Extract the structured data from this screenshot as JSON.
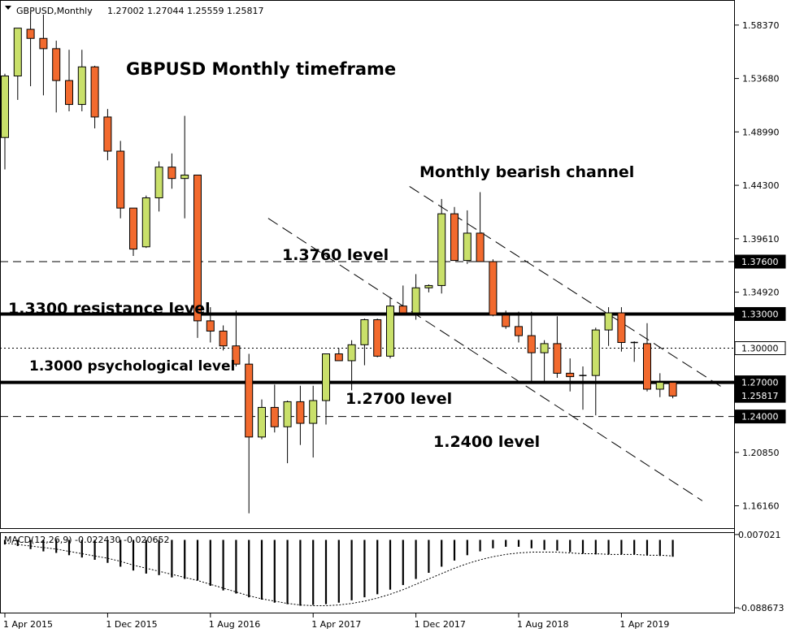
{
  "header": {
    "symbol": "GBPUSD,Monthly",
    "ohlc": "1.27002 1.27044 1.25559 1.25817"
  },
  "chart_data": [
    {
      "type": "candlestick",
      "title": "GBPUSD Monthly timeframe",
      "annotations": {
        "channel": "Monthly bearish channel",
        "level_1376": "1.3760 level",
        "level_133": "1.3300 resistance level",
        "level_13": "1.3000 psychological level",
        "level_127": "1.2700 level",
        "level_124": "1.2400 level"
      },
      "ylim": [
        1.142,
        1.605
      ],
      "y_ticks": [
        "1.58370",
        "1.53680",
        "1.48990",
        "1.44300",
        "1.39610",
        "1.34920",
        "1.20850",
        "1.16160"
      ],
      "y_tick_values": [
        1.5837,
        1.5368,
        1.4899,
        1.443,
        1.3961,
        1.3492,
        1.2085,
        1.1616
      ],
      "x_ticks": [
        {
          "label": "1 Apr 2015",
          "index": 0
        },
        {
          "label": "1 Dec 2015",
          "index": 8
        },
        {
          "label": "1 Aug 2016",
          "index": 16
        },
        {
          "label": "1 Apr 2017",
          "index": 24
        },
        {
          "label": "1 Dec 2017",
          "index": 32
        },
        {
          "label": "1 Aug 2018",
          "index": 40
        },
        {
          "label": "1 Apr 2019",
          "index": 48
        }
      ],
      "levels": [
        {
          "label": "1.37600",
          "value": 1.376,
          "style": "dashed",
          "box": "black"
        },
        {
          "label": "1.33000",
          "value": 1.33,
          "style": "thick",
          "box": "black"
        },
        {
          "label": "1.30000",
          "value": 1.3,
          "style": "dotted",
          "box": "white"
        },
        {
          "label": "1.27000",
          "value": 1.27,
          "style": "thick",
          "box": "black"
        },
        {
          "label": "1.25817",
          "value": 1.25817,
          "style": "none",
          "box": "black"
        },
        {
          "label": "1.24000",
          "value": 1.24,
          "style": "dashed",
          "box": "black"
        }
      ],
      "channel_lines": [
        {
          "from": {
            "index": 31.5,
            "value": 1.442
          },
          "to": {
            "index": 55.8,
            "value": 1.266
          }
        },
        {
          "from": {
            "index": 20.5,
            "value": 1.414
          },
          "to": {
            "index": 54.3,
            "value": 1.166
          }
        }
      ],
      "candles": [
        {
          "o": 1.485,
          "h": 1.541,
          "l": 1.457,
          "c": 1.539
        },
        {
          "o": 1.539,
          "h": 1.581,
          "l": 1.518,
          "c": 1.581
        },
        {
          "o": 1.58,
          "h": 1.595,
          "l": 1.53,
          "c": 1.572
        },
        {
          "o": 1.572,
          "h": 1.593,
          "l": 1.522,
          "c": 1.563
        },
        {
          "o": 1.563,
          "h": 1.57,
          "l": 1.507,
          "c": 1.535
        },
        {
          "o": 1.535,
          "h": 1.562,
          "l": 1.508,
          "c": 1.514
        },
        {
          "o": 1.514,
          "h": 1.562,
          "l": 1.508,
          "c": 1.547
        },
        {
          "o": 1.547,
          "h": 1.548,
          "l": 1.493,
          "c": 1.503
        },
        {
          "o": 1.503,
          "h": 1.51,
          "l": 1.465,
          "c": 1.473
        },
        {
          "o": 1.473,
          "h": 1.482,
          "l": 1.414,
          "c": 1.423
        },
        {
          "o": 1.423,
          "h": 1.423,
          "l": 1.381,
          "c": 1.387
        },
        {
          "o": 1.389,
          "h": 1.434,
          "l": 1.388,
          "c": 1.432
        },
        {
          "o": 1.432,
          "h": 1.464,
          "l": 1.42,
          "c": 1.459
        },
        {
          "o": 1.459,
          "h": 1.471,
          "l": 1.44,
          "c": 1.449
        },
        {
          "o": 1.449,
          "h": 1.504,
          "l": 1.414,
          "c": 1.452
        },
        {
          "o": 1.452,
          "h": 1.452,
          "l": 1.309,
          "c": 1.324
        },
        {
          "o": 1.324,
          "h": 1.336,
          "l": 1.305,
          "c": 1.315
        },
        {
          "o": 1.315,
          "h": 1.32,
          "l": 1.298,
          "c": 1.302
        },
        {
          "o": 1.302,
          "h": 1.333,
          "l": 1.284,
          "c": 1.286
        },
        {
          "o": 1.286,
          "h": 1.295,
          "l": 1.155,
          "c": 1.222
        },
        {
          "o": 1.222,
          "h": 1.255,
          "l": 1.22,
          "c": 1.248
        },
        {
          "o": 1.248,
          "h": 1.268,
          "l": 1.226,
          "c": 1.231
        },
        {
          "o": 1.231,
          "h": 1.254,
          "l": 1.199,
          "c": 1.253
        },
        {
          "o": 1.253,
          "h": 1.267,
          "l": 1.215,
          "c": 1.234
        },
        {
          "o": 1.234,
          "h": 1.267,
          "l": 1.204,
          "c": 1.254
        },
        {
          "o": 1.254,
          "h": 1.295,
          "l": 1.233,
          "c": 1.295
        },
        {
          "o": 1.295,
          "h": 1.3,
          "l": 1.289,
          "c": 1.289
        },
        {
          "o": 1.289,
          "h": 1.307,
          "l": 1.263,
          "c": 1.303
        },
        {
          "o": 1.303,
          "h": 1.326,
          "l": 1.285,
          "c": 1.325
        },
        {
          "o": 1.325,
          "h": 1.326,
          "l": 1.292,
          "c": 1.293
        },
        {
          "o": 1.293,
          "h": 1.345,
          "l": 1.291,
          "c": 1.337
        },
        {
          "o": 1.337,
          "h": 1.355,
          "l": 1.33,
          "c": 1.331
        },
        {
          "o": 1.331,
          "h": 1.365,
          "l": 1.325,
          "c": 1.353
        },
        {
          "o": 1.353,
          "h": 1.356,
          "l": 1.349,
          "c": 1.355
        },
        {
          "o": 1.355,
          "h": 1.431,
          "l": 1.348,
          "c": 1.418
        },
        {
          "o": 1.418,
          "h": 1.424,
          "l": 1.377,
          "c": 1.377
        },
        {
          "o": 1.377,
          "h": 1.421,
          "l": 1.374,
          "c": 1.401
        },
        {
          "o": 1.401,
          "h": 1.437,
          "l": 1.376,
          "c": 1.376
        },
        {
          "o": 1.376,
          "h": 1.378,
          "l": 1.328,
          "c": 1.329
        },
        {
          "o": 1.329,
          "h": 1.333,
          "l": 1.317,
          "c": 1.319
        },
        {
          "o": 1.319,
          "h": 1.332,
          "l": 1.305,
          "c": 1.311
        },
        {
          "o": 1.311,
          "h": 1.332,
          "l": 1.27,
          "c": 1.296
        },
        {
          "o": 1.296,
          "h": 1.307,
          "l": 1.271,
          "c": 1.304
        },
        {
          "o": 1.304,
          "h": 1.328,
          "l": 1.274,
          "c": 1.278
        },
        {
          "o": 1.278,
          "h": 1.291,
          "l": 1.262,
          "c": 1.275
        },
        {
          "o": 1.275,
          "h": 1.284,
          "l": 1.246,
          "c": 1.276
        },
        {
          "o": 1.276,
          "h": 1.318,
          "l": 1.241,
          "c": 1.316
        },
        {
          "o": 1.316,
          "h": 1.336,
          "l": 1.302,
          "c": 1.331
        },
        {
          "o": 1.331,
          "h": 1.336,
          "l": 1.297,
          "c": 1.305
        },
        {
          "o": 1.305,
          "h": 1.306,
          "l": 1.288,
          "c": 1.304
        },
        {
          "o": 1.304,
          "h": 1.322,
          "l": 1.262,
          "c": 1.264
        },
        {
          "o": 1.264,
          "h": 1.278,
          "l": 1.257,
          "c": 1.27
        },
        {
          "o": 1.27,
          "h": 1.27,
          "l": 1.256,
          "c": 1.258
        }
      ]
    },
    {
      "type": "bar",
      "title": "MACD(12,26,9) -0.022430 -0.020652",
      "ylim": [
        -0.095,
        0.009
      ],
      "y_ticks": [
        "0.007021",
        "-0.088673"
      ],
      "y_tick_values": [
        0.007021,
        -0.088673
      ],
      "values": [
        -0.006,
        -0.008,
        -0.012,
        -0.015,
        -0.017,
        -0.02,
        -0.023,
        -0.026,
        -0.03,
        -0.035,
        -0.04,
        -0.044,
        -0.046,
        -0.049,
        -0.051,
        -0.053,
        -0.06,
        -0.066,
        -0.07,
        -0.075,
        -0.078,
        -0.082,
        -0.084,
        -0.086,
        -0.085,
        -0.084,
        -0.082,
        -0.079,
        -0.075,
        -0.071,
        -0.065,
        -0.059,
        -0.051,
        -0.043,
        -0.035,
        -0.027,
        -0.02,
        -0.015,
        -0.011,
        -0.009,
        -0.009,
        -0.011,
        -0.013,
        -0.014,
        -0.016,
        -0.018,
        -0.019,
        -0.019,
        -0.019,
        -0.019,
        -0.02,
        -0.021,
        -0.022
      ],
      "signal": [
        -0.004,
        -0.006,
        -0.008,
        -0.01,
        -0.012,
        -0.015,
        -0.018,
        -0.021,
        -0.024,
        -0.028,
        -0.033,
        -0.037,
        -0.041,
        -0.045,
        -0.049,
        -0.053,
        -0.058,
        -0.063,
        -0.068,
        -0.073,
        -0.077,
        -0.08,
        -0.083,
        -0.085,
        -0.086,
        -0.086,
        -0.085,
        -0.083,
        -0.08,
        -0.076,
        -0.071,
        -0.065,
        -0.058,
        -0.051,
        -0.044,
        -0.037,
        -0.031,
        -0.026,
        -0.022,
        -0.019,
        -0.017,
        -0.016,
        -0.016,
        -0.016,
        -0.017,
        -0.018,
        -0.018,
        -0.019,
        -0.019,
        -0.019,
        -0.02,
        -0.02,
        -0.021
      ]
    }
  ],
  "colors": {
    "bull": "#c9e06a",
    "bear": "#f26a2e",
    "grid": "#000000",
    "background": "#ffffff"
  }
}
